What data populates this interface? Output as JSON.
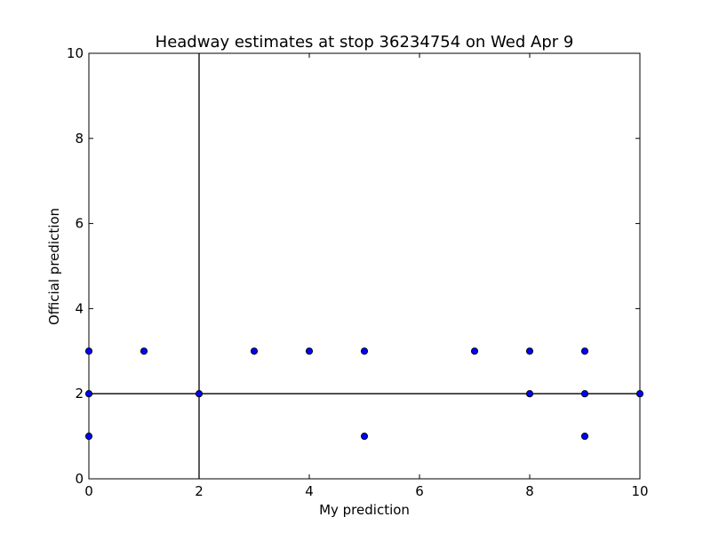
{
  "chart_data": {
    "type": "scatter",
    "title": "Headway estimates at stop 36234754 on Wed Apr 9",
    "xlabel": "My prediction",
    "ylabel": "Official prediction",
    "xlim": [
      0,
      10
    ],
    "ylim": [
      0,
      10
    ],
    "xticks": [
      "0",
      "2",
      "4",
      "6",
      "8",
      "10"
    ],
    "yticks": [
      "0",
      "2",
      "4",
      "6",
      "8",
      "10"
    ],
    "grid": false,
    "legend": "none",
    "reference_lines": {
      "vertical_x": 2,
      "horizontal_y": 2
    },
    "marker_color": "#0000ff",
    "points": [
      {
        "x": 0,
        "y": 3
      },
      {
        "x": 0,
        "y": 2
      },
      {
        "x": 0,
        "y": 1
      },
      {
        "x": 1,
        "y": 3
      },
      {
        "x": 2,
        "y": 2
      },
      {
        "x": 3,
        "y": 3
      },
      {
        "x": 4,
        "y": 3
      },
      {
        "x": 5,
        "y": 3
      },
      {
        "x": 5,
        "y": 1
      },
      {
        "x": 7,
        "y": 3
      },
      {
        "x": 8,
        "y": 3
      },
      {
        "x": 8,
        "y": 2
      },
      {
        "x": 9,
        "y": 3
      },
      {
        "x": 9,
        "y": 2
      },
      {
        "x": 9,
        "y": 1
      },
      {
        "x": 10,
        "y": 2
      }
    ]
  }
}
